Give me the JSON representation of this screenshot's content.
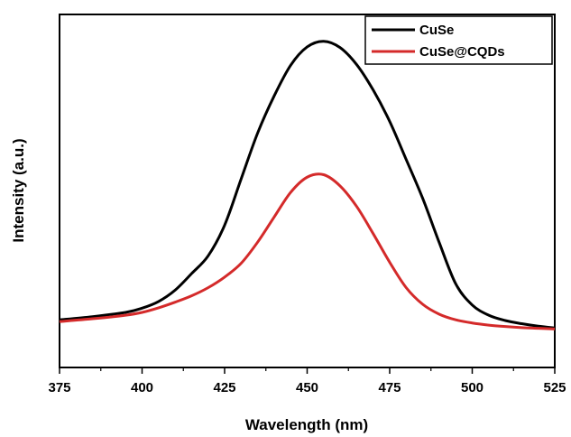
{
  "chart_data": {
    "type": "line",
    "xlabel": "Wavelength (nm)",
    "ylabel": "Intensity (a.u.)",
    "xlim": [
      375,
      525
    ],
    "ylim": [
      0,
      100
    ],
    "x_ticks": [
      "375",
      "400",
      "425",
      "450",
      "475",
      "500",
      "525"
    ],
    "y_ticks_shown": false,
    "grid": false,
    "legend_position": "top-right",
    "series": [
      {
        "name": "CuSe",
        "color": "#000000",
        "x": [
          375,
          385,
          395,
          400,
          405,
          410,
          415,
          420,
          425,
          430,
          435,
          440,
          445,
          450,
          455,
          460,
          465,
          470,
          475,
          480,
          485,
          490,
          495,
          500,
          505,
          510,
          515,
          520,
          525
        ],
        "y": [
          13.5,
          14.4,
          15.6,
          16.8,
          18.7,
          21.9,
          26.6,
          31.6,
          40.3,
          53.4,
          66.4,
          76.9,
          85.6,
          90.8,
          92.4,
          90.6,
          85.8,
          78.6,
          69.7,
          58.9,
          47.9,
          35.4,
          23.7,
          17.7,
          14.8,
          13.3,
          12.4,
          11.7,
          11.2
        ]
      },
      {
        "name": "CuSe@CQDs",
        "color": "#d42a2a",
        "x": [
          375,
          385,
          395,
          400,
          405,
          410,
          415,
          420,
          425,
          430,
          435,
          440,
          445,
          450,
          455,
          460,
          465,
          470,
          475,
          480,
          485,
          490,
          495,
          500,
          505,
          510,
          515,
          520,
          525
        ],
        "y": [
          13.0,
          13.8,
          14.8,
          15.6,
          16.9,
          18.5,
          20.3,
          22.6,
          25.6,
          29.5,
          35.5,
          42.6,
          49.6,
          53.9,
          54.6,
          51.4,
          45.6,
          37.9,
          29.8,
          22.6,
          17.9,
          15.1,
          13.5,
          12.6,
          12.0,
          11.6,
          11.3,
          11.1,
          10.9
        ]
      }
    ]
  }
}
